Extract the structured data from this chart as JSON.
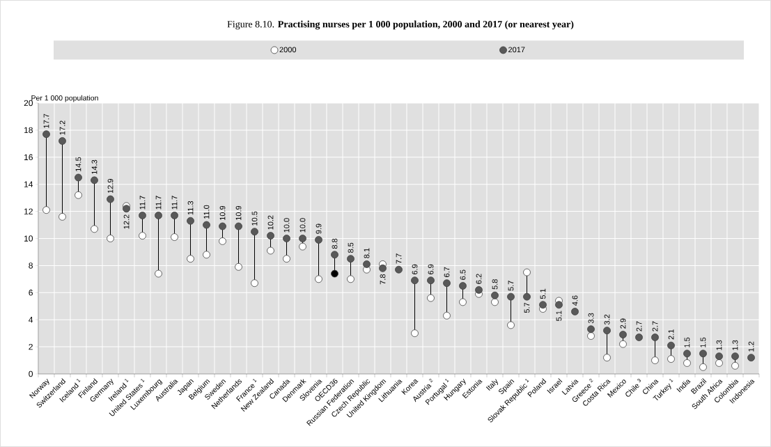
{
  "chart_data": {
    "type": "scatter",
    "title": "Figure 8.10. **Practising nurses per 1 000 population, 2000 and 2017 (or nearest year)**",
    "ylabel": "Per 1 000 population",
    "categories": [
      "Norway",
      "Switzerland",
      "Iceland $^{1}$",
      "Finland",
      "Germany",
      "Ireland $^{1}$",
      "United States $^{1}$",
      "Luxembourg",
      "Australia",
      "Japan",
      "Belgium",
      "Sweden",
      "Netherlands",
      "France $^{1}$",
      "New Zealand",
      "Canada",
      "Denmark",
      "Slovenia",
      "OECD36",
      "Russian Federation",
      "Czech Republic",
      "United Kingdom",
      "Lithuania",
      "Korea",
      "Austria $^{2}$",
      "Portugal $^{1}$",
      "Hungary",
      "Estonia",
      "Italy",
      "Spain",
      "Slovak Republic $^{1}$",
      "Poland",
      "Israel",
      "Latvia",
      "Greece $^{2}$",
      "Costa Rica",
      "Mexico",
      "Chile $^{3}$",
      "China",
      "Turkey $^{1}$",
      "India",
      "Brazil",
      "South Africa",
      "Colombia",
      "Indonesia"
    ],
    "series": [
      {
        "name": "2000",
        "color": "#ffffff",
        "colors": [
          "#ffffff",
          "#ffffff",
          "#ffffff",
          "#ffffff",
          "#ffffff",
          "#ffffff",
          "#ffffff",
          "#ffffff",
          "#ffffff",
          "#ffffff",
          "#ffffff",
          "#ffffff",
          "#ffffff",
          "#ffffff",
          "#ffffff",
          "#ffffff",
          "#ffffff",
          "#ffffff",
          "#000000",
          "#ffffff",
          "#ffffff",
          "#ffffff",
          "#ffffff",
          "#ffffff",
          "#ffffff",
          "#ffffff",
          "#ffffff",
          "#ffffff",
          "#ffffff",
          "#ffffff",
          "#ffffff",
          "#ffffff",
          "#ffffff",
          "#ffffff",
          "#ffffff",
          "#ffffff",
          "#ffffff",
          "#ffffff",
          "#ffffff",
          "#ffffff",
          "#ffffff",
          "#ffffff",
          "#ffffff",
          "#ffffff",
          "#ffffff"
        ],
        "values": [
          12.1,
          11.6,
          13.2,
          10.7,
          10.0,
          12.4,
          10.2,
          7.4,
          10.1,
          8.5,
          8.8,
          9.8,
          7.9,
          6.7,
          9.1,
          8.5,
          9.4,
          7.0,
          7.4,
          7.0,
          7.7,
          8.1,
          null,
          3.0,
          5.6,
          4.3,
          5.3,
          5.9,
          5.3,
          3.6,
          7.5,
          4.8,
          5.4,
          null,
          2.8,
          1.2,
          2.2,
          null,
          1.0,
          1.1,
          0.8,
          0.5,
          0.8,
          0.6,
          null
        ]
      },
      {
        "name": "2017",
        "color": "#595959",
        "values": [
          17.7,
          17.2,
          14.5,
          14.3,
          12.9,
          12.2,
          11.7,
          11.7,
          11.7,
          11.3,
          11.0,
          10.9,
          10.9,
          10.5,
          10.2,
          10.0,
          10.0,
          9.9,
          8.8,
          8.5,
          8.1,
          7.8,
          7.7,
          6.9,
          6.9,
          6.7,
          6.5,
          6.2,
          5.8,
          5.7,
          5.7,
          5.1,
          5.1,
          4.6,
          3.3,
          3.2,
          2.9,
          2.7,
          2.7,
          2.1,
          1.5,
          1.5,
          1.3,
          1.3,
          1.2
        ],
        "value_labels": [
          "17.7",
          "17.2",
          "14.5",
          "14.3",
          "12.9",
          "12.2",
          "11.7",
          "11.7",
          "11.7",
          "11.3",
          "11.0",
          "10.9",
          "10.9",
          "10.5",
          "10.2",
          "10.0",
          "10.0",
          "9.9",
          "8.8",
          "8.5",
          "8.1",
          "7.8",
          "7.7",
          "6.9",
          "6.9",
          "6.7",
          "6.5",
          "6.2",
          "5.8",
          "5.7",
          "5.7",
          "5.1",
          "5.1",
          "4.6",
          "3.3",
          "3.2",
          "2.9",
          "2.7",
          "2.7",
          "2.1",
          "1.5",
          "1.5",
          "1.3",
          "1.3",
          "1.2"
        ]
      }
    ],
    "ylim": [
      0,
      20
    ],
    "yticks": [
      0,
      2,
      4,
      6,
      8,
      10,
      12,
      14,
      16,
      18,
      20
    ],
    "grid": true,
    "legend": "top",
    "marker": "circle"
  }
}
